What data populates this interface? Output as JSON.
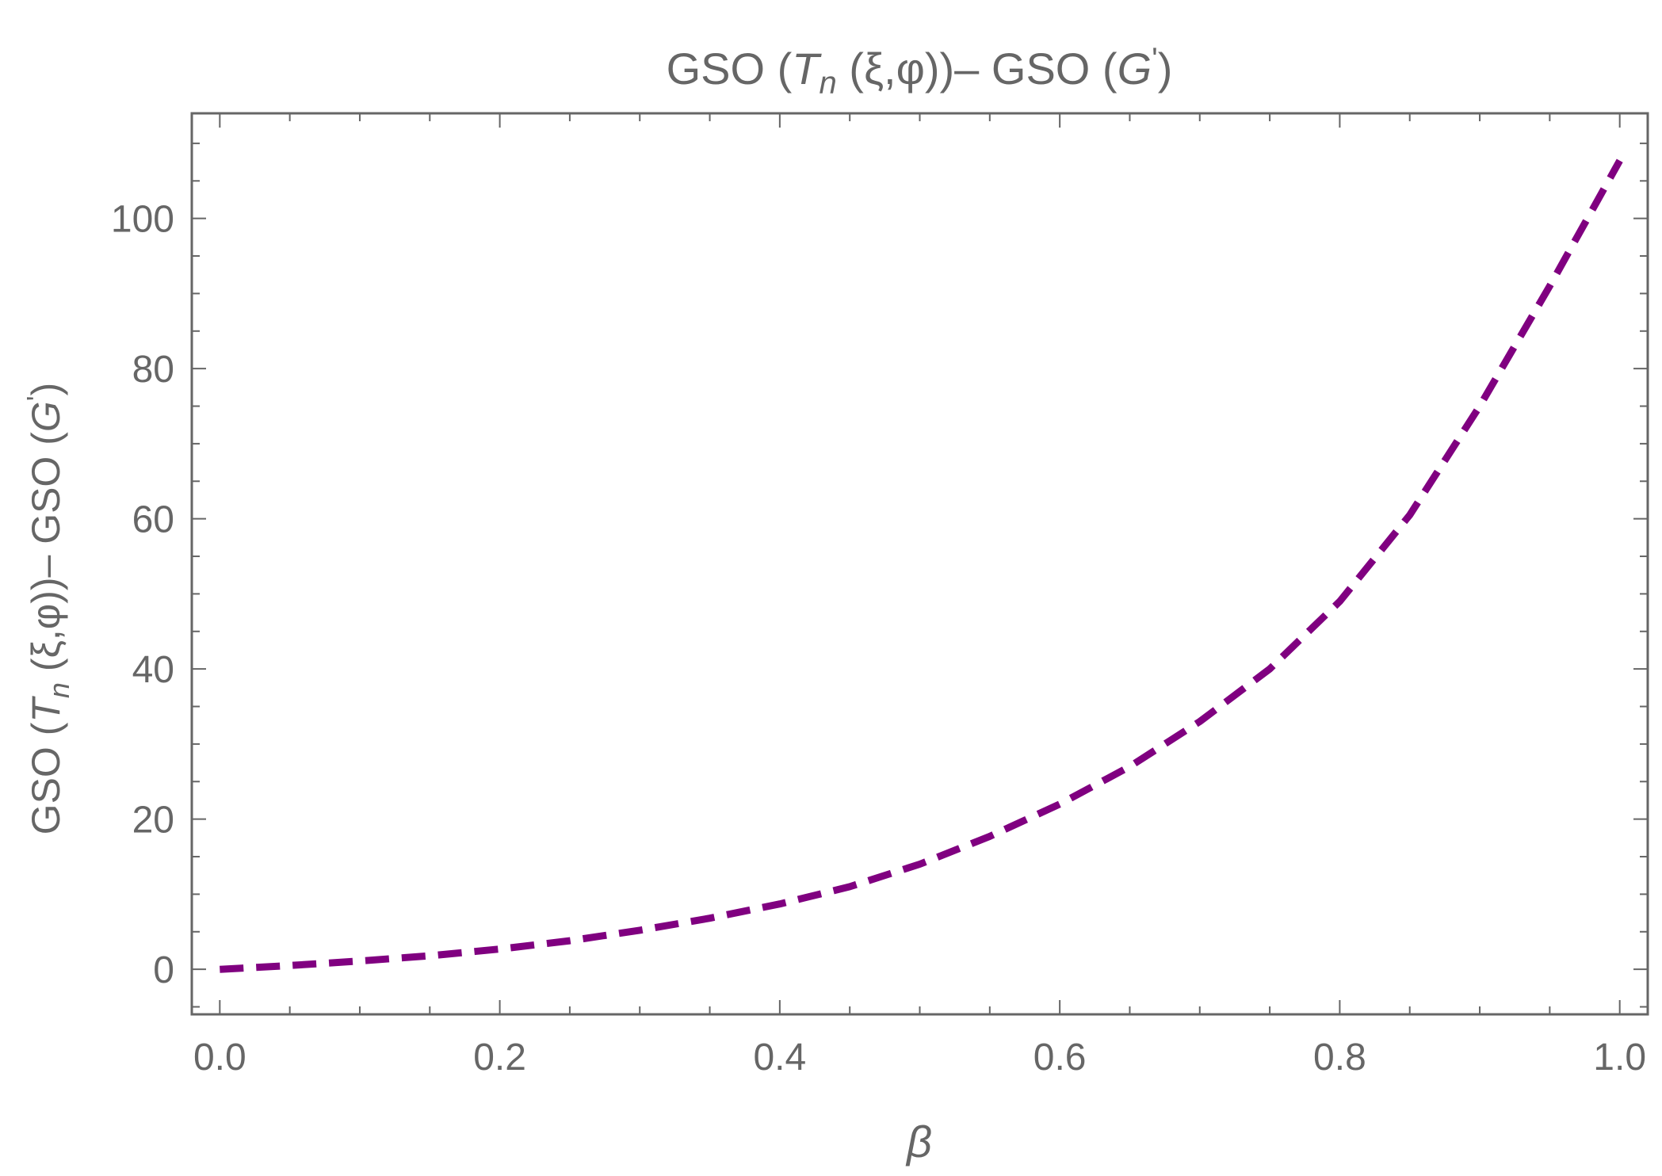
{
  "chart_data": {
    "type": "line",
    "title": {
      "prefix": "GSO  (",
      "T": "T",
      "n": "n",
      "args": "  (ξ,φ))– GSO  (",
      "G": "G",
      "prime": "'",
      "close": ")"
    },
    "ylabel": {
      "prefix": "GSO  (",
      "T": "T",
      "n": "n",
      "args": "  (ξ,φ))– GSO  (",
      "G": "G",
      "prime": "'",
      "close": ")"
    },
    "xlabel": "β",
    "xlim": [
      -0.02,
      1.02
    ],
    "ylim": [
      -6,
      114
    ],
    "x_ticks": [
      {
        "value": 0.0,
        "label": "0.0"
      },
      {
        "value": 0.2,
        "label": "0.2"
      },
      {
        "value": 0.4,
        "label": "0.4"
      },
      {
        "value": 0.6,
        "label": "0.6"
      },
      {
        "value": 0.8,
        "label": "0.8"
      },
      {
        "value": 1.0,
        "label": "1.0"
      }
    ],
    "y_ticks": [
      {
        "value": 0,
        "label": "0"
      },
      {
        "value": 20,
        "label": "20"
      },
      {
        "value": 40,
        "label": "40"
      },
      {
        "value": 60,
        "label": "60"
      },
      {
        "value": 80,
        "label": "80"
      },
      {
        "value": 100,
        "label": "100"
      }
    ],
    "x_minor_step": 0.05,
    "y_minor_step": 5,
    "grid": false,
    "line_style": "dashed",
    "series": [
      {
        "color": "#800080",
        "x": [
          0.0,
          0.05,
          0.1,
          0.15,
          0.2,
          0.25,
          0.3,
          0.35,
          0.4,
          0.45,
          0.5,
          0.55,
          0.6,
          0.65,
          0.7,
          0.75,
          0.8,
          0.85,
          0.9,
          0.95,
          1.0
        ],
        "y": [
          0.0,
          0.5,
          1.1,
          1.8,
          2.7,
          3.8,
          5.2,
          6.8,
          8.7,
          11.0,
          14.0,
          17.7,
          22.0,
          27.0,
          33.0,
          40.0,
          49.0,
          60.5,
          75.0,
          91.0,
          107.7
        ]
      }
    ]
  }
}
